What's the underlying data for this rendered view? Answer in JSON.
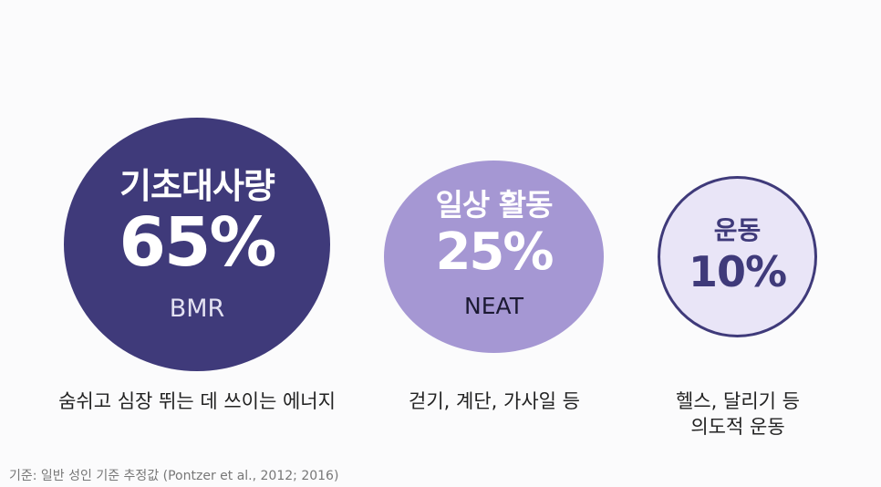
{
  "items": [
    {
      "title": "기초대사량",
      "value": "65%",
      "subtitle": "BMR",
      "description": [
        "숨쉬고 심장 뛰는 데 쓰이는 에너지"
      ]
    },
    {
      "title": "일상 활동",
      "value": "25%",
      "subtitle": "NEAT",
      "description": [
        "걷기, 계단, 가사일 등"
      ]
    },
    {
      "title": "운동",
      "value": "10%",
      "subtitle": "",
      "description": [
        "헬스, 달리기 등",
        "의도적 운동"
      ]
    }
  ],
  "source": "기준: 일반 성인 기준 추정값 (Pontzer et al., 2012; 2016)",
  "colors": {
    "dark": "#3f3a7a",
    "medium": "#a597d3",
    "light": "#e9e5f7",
    "background": "#fbfbfc"
  }
}
